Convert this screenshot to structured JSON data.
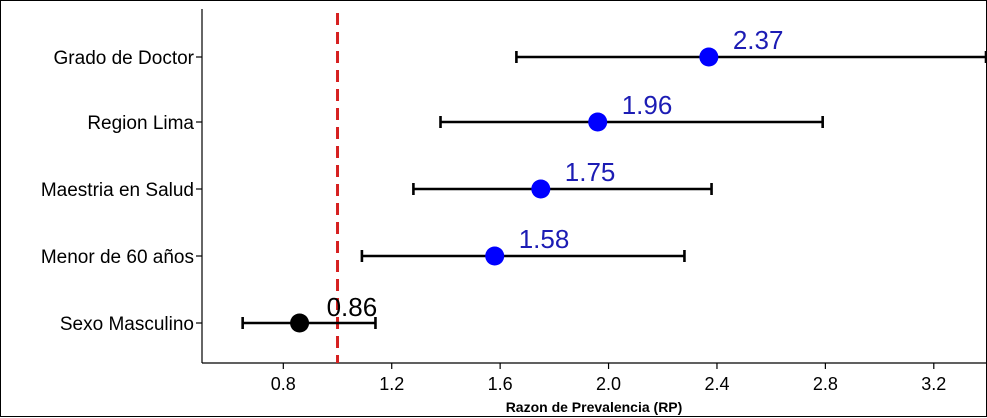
{
  "chart_data": {
    "type": "scatter",
    "subtype": "forest-plot",
    "title": "",
    "xlabel": "Razon de Prevalencia (RP)",
    "ylabel": "",
    "xlim": [
      0.5,
      3.4
    ],
    "xticks": [
      "0.8",
      "1.2",
      "1.6",
      "2.0",
      "2.4",
      "2.8",
      "3.2"
    ],
    "xtick_values": [
      0.8,
      1.2,
      1.6,
      2.0,
      2.4,
      2.8,
      3.2
    ],
    "reference_line": {
      "x": 1.0,
      "color": "#d62020",
      "style": "dashed"
    },
    "grid": false,
    "legend": "none",
    "colors": {
      "significant": "#0000ff",
      "significant_label": "#1c1cb4",
      "nonsignificant": "#000000"
    },
    "rows": [
      {
        "label": "Grado de Doctor",
        "estimate": 2.37,
        "estimate_label": "2.37",
        "ci_low": 1.66,
        "ci_high": 3.4,
        "significant": true
      },
      {
        "label": "Region Lima",
        "estimate": 1.96,
        "estimate_label": "1.96",
        "ci_low": 1.38,
        "ci_high": 2.79,
        "significant": true
      },
      {
        "label": "Maestria en Salud",
        "estimate": 1.75,
        "estimate_label": "1.75",
        "ci_low": 1.28,
        "ci_high": 2.38,
        "significant": true
      },
      {
        "label": "Menor de 60 años",
        "estimate": 1.58,
        "estimate_label": "1.58",
        "ci_low": 1.09,
        "ci_high": 2.28,
        "significant": true
      },
      {
        "label": "Sexo Masculino",
        "estimate": 0.86,
        "estimate_label": "0.86",
        "ci_low": 0.65,
        "ci_high": 1.14,
        "significant": false
      }
    ]
  }
}
